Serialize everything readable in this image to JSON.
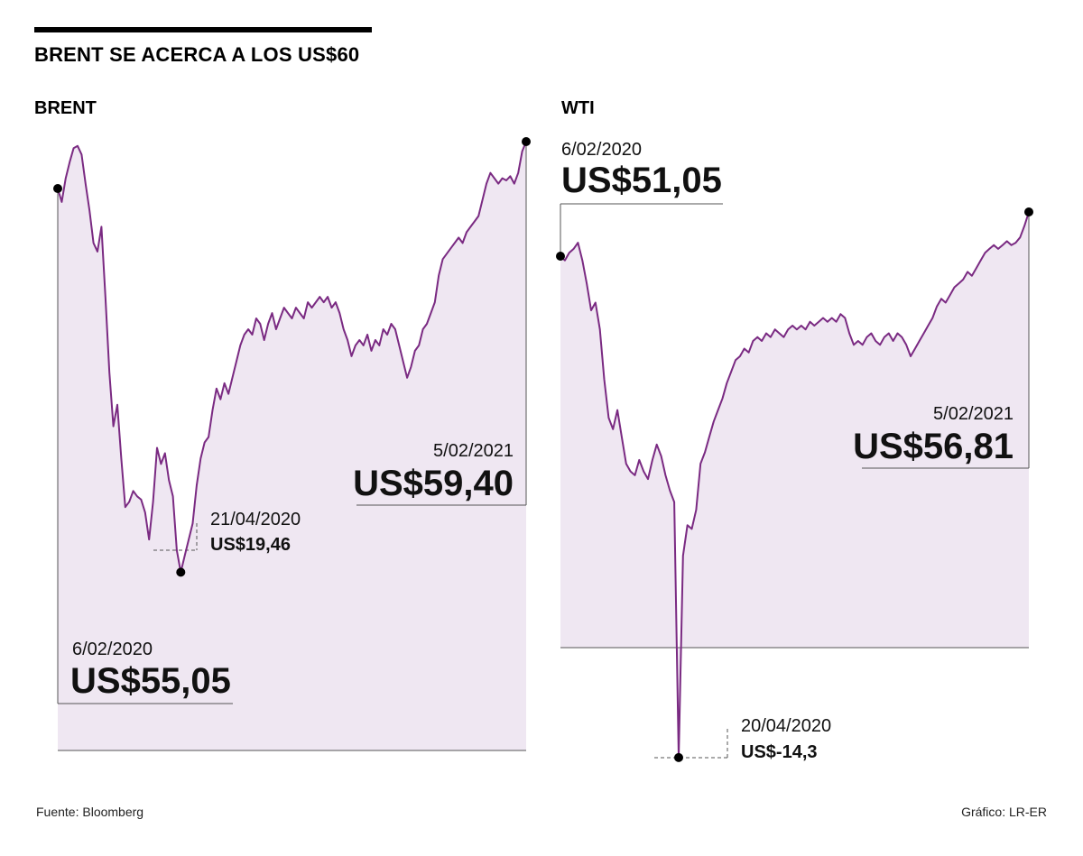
{
  "title": "BRENT SE ACERCA A LOS US$60",
  "source": "Fuente: Bloomberg",
  "credit": "Gráfico: LR-ER",
  "colors": {
    "line": "#7a2a82",
    "fill": "#efe7f2",
    "text": "#111111"
  },
  "chart_data": [
    {
      "type": "area",
      "title": "BRENT",
      "series": [
        {
          "values": [
            55.05,
            53.8,
            56.0,
            57.5,
            58.8,
            59.0,
            58.2,
            55.5,
            53.0,
            50.0,
            49.2,
            51.5,
            45.0,
            38.0,
            33.0,
            35.0,
            30.0,
            25.5,
            26.0,
            27.0,
            26.5,
            26.2,
            25.0,
            22.5,
            26.0,
            31.0,
            29.5,
            30.5,
            28.0,
            26.5,
            21.5,
            19.46,
            21.0,
            22.5,
            24.0,
            27.5,
            30.0,
            31.5,
            32.0,
            34.5,
            36.5,
            35.5,
            37.0,
            36.0,
            37.5,
            39.0,
            40.5,
            41.5,
            42.0,
            41.5,
            43.0,
            42.5,
            41.0,
            42.5,
            43.5,
            42.0,
            43.0,
            44.0,
            43.5,
            43.0,
            44.0,
            43.5,
            43.0,
            44.5,
            44.0,
            44.5,
            45.0,
            44.5,
            45.0,
            44.0,
            44.5,
            43.5,
            42.0,
            41.0,
            39.5,
            40.5,
            41.0,
            40.5,
            41.5,
            40.0,
            41.0,
            40.5,
            42.0,
            41.5,
            42.5,
            42.0,
            40.5,
            39.0,
            37.5,
            38.5,
            40.0,
            40.5,
            42.0,
            42.5,
            43.5,
            44.5,
            47.0,
            48.5,
            49.0,
            49.5,
            50.0,
            50.5,
            50.0,
            51.0,
            51.5,
            52.0,
            52.5,
            54.0,
            55.5,
            56.5,
            56.0,
            55.5,
            56.0,
            55.8,
            56.2,
            55.5,
            56.5,
            58.5,
            59.4
          ]
        }
      ],
      "annotations": [
        {
          "date": "6/02/2020",
          "price": "US$55,05"
        },
        {
          "date": "21/04/2020",
          "price": "US$19,46"
        },
        {
          "date": "5/02/2021",
          "price": "US$59,40"
        }
      ]
    },
    {
      "type": "area",
      "title": "WTI",
      "series": [
        {
          "values": [
            51.05,
            50.5,
            51.5,
            52.0,
            52.8,
            50.5,
            47.5,
            44.0,
            45.0,
            41.5,
            35.0,
            30.0,
            28.5,
            31.0,
            27.5,
            24.0,
            23.0,
            22.5,
            24.5,
            23.0,
            22.0,
            24.5,
            26.5,
            25.0,
            22.5,
            20.5,
            19.0,
            -14.3,
            12.0,
            16.0,
            15.5,
            18.0,
            24.0,
            25.5,
            27.5,
            29.5,
            31.0,
            32.5,
            34.5,
            36.0,
            37.5,
            38.0,
            39.0,
            38.5,
            40.0,
            40.5,
            40.0,
            41.0,
            40.5,
            41.5,
            41.0,
            40.5,
            41.5,
            42.0,
            41.5,
            42.0,
            41.5,
            42.5,
            42.0,
            42.5,
            43.0,
            42.5,
            43.0,
            42.5,
            43.5,
            43.0,
            41.0,
            39.5,
            40.0,
            39.5,
            40.5,
            41.0,
            40.0,
            39.5,
            40.5,
            41.0,
            40.0,
            41.0,
            40.5,
            39.5,
            38.0,
            39.0,
            40.0,
            41.0,
            42.0,
            43.0,
            44.5,
            45.5,
            45.0,
            46.0,
            47.0,
            47.5,
            48.0,
            49.0,
            48.5,
            49.5,
            50.5,
            51.5,
            52.0,
            52.5,
            52.0,
            52.5,
            53.0,
            52.5,
            52.8,
            53.5,
            55.0,
            56.81
          ]
        }
      ],
      "annotations": [
        {
          "date": "6/02/2020",
          "price": "US$51,05"
        },
        {
          "date": "20/04/2020",
          "price": "US$-14,3"
        },
        {
          "date": "5/02/2021",
          "price": "US$56,81"
        }
      ]
    }
  ]
}
